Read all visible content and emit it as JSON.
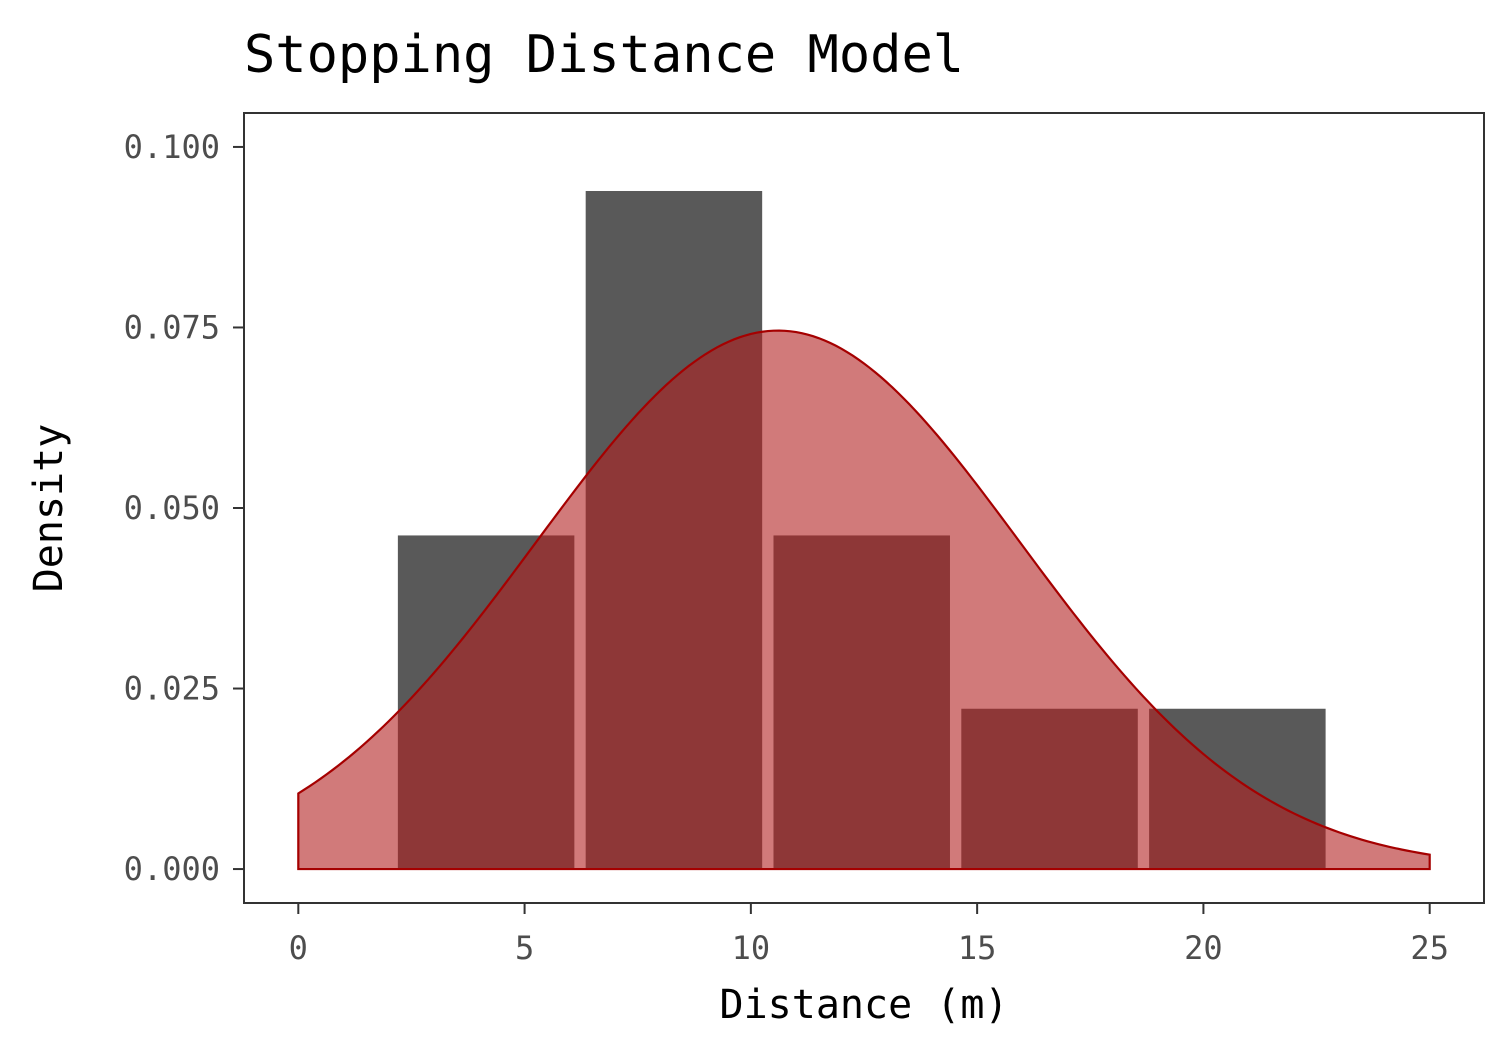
{
  "chart_data": {
    "type": "bar",
    "title": "Stopping Distance Model",
    "xlabel": "Distance (m)",
    "ylabel": "Density",
    "xlim": [
      -1.2,
      26.2
    ],
    "ylim": [
      -0.0047,
      0.1047
    ],
    "x_ticks": [
      "0",
      "5",
      "10",
      "15",
      "20",
      "25"
    ],
    "y_ticks": [
      "0.000",
      "0.025",
      "0.050",
      "0.075",
      "0.100"
    ],
    "histogram_bins": [
      {
        "x0": 2.2,
        "x1": 6.1,
        "density": 0.0462
      },
      {
        "x0": 6.35,
        "x1": 10.25,
        "density": 0.0939
      },
      {
        "x0": 10.5,
        "x1": 14.4,
        "density": 0.0462
      },
      {
        "x0": 14.65,
        "x1": 18.55,
        "density": 0.0222
      },
      {
        "x0": 18.8,
        "x1": 22.7,
        "density": 0.0222
      }
    ],
    "density_curve": {
      "distribution": "normal",
      "mean": 10.6,
      "sd": 5.35,
      "x_range": [
        0,
        25
      ]
    },
    "grid": false,
    "colors": {
      "bars": "#595959",
      "curve_fill": "#b22222",
      "curve_line": "#a50000"
    }
  }
}
